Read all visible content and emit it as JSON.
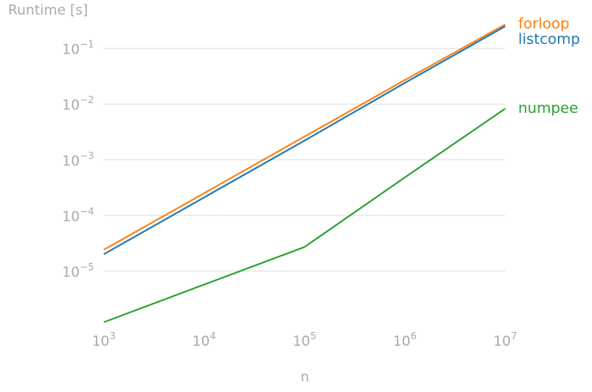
{
  "chart_data": {
    "type": "line",
    "ylabel": "Runtime [s]",
    "xlabel": "n",
    "xscale": "log",
    "yscale": "log",
    "x": [
      1000,
      10000,
      100000,
      1000000,
      10000000
    ],
    "xlim": [
      1000,
      10000000
    ],
    "ylim": [
      1.2e-06,
      0.28
    ],
    "grid": "horizontal",
    "legend": "right, labels at line ends",
    "xticks": [
      {
        "value": 1000,
        "base": "10",
        "exp": "3"
      },
      {
        "value": 10000,
        "base": "10",
        "exp": "4"
      },
      {
        "value": 100000,
        "base": "10",
        "exp": "5"
      },
      {
        "value": 1000000,
        "base": "10",
        "exp": "6"
      },
      {
        "value": 10000000,
        "base": "10",
        "exp": "7"
      }
    ],
    "yticks": [
      {
        "value": 0.1,
        "base": "10",
        "exp": "−1"
      },
      {
        "value": 0.01,
        "base": "10",
        "exp": "−2"
      },
      {
        "value": 0.001,
        "base": "10",
        "exp": "−3"
      },
      {
        "value": 0.0001,
        "base": "10",
        "exp": "−4"
      },
      {
        "value": 1e-05,
        "base": "10",
        "exp": "−5"
      }
    ],
    "series": [
      {
        "name": "forloop",
        "color": "#ff7f0e",
        "values": [
          2.4e-05,
          0.00025,
          0.0026,
          0.027,
          0.27
        ]
      },
      {
        "name": "listcomp",
        "color": "#1f77b4",
        "values": [
          2e-05,
          0.00021,
          0.0022,
          0.024,
          0.25
        ]
      },
      {
        "name": "numpee",
        "color": "#2ca02c",
        "values": [
          1.2e-06,
          5.7e-06,
          2.7e-05,
          0.00048,
          0.0083
        ]
      }
    ]
  }
}
